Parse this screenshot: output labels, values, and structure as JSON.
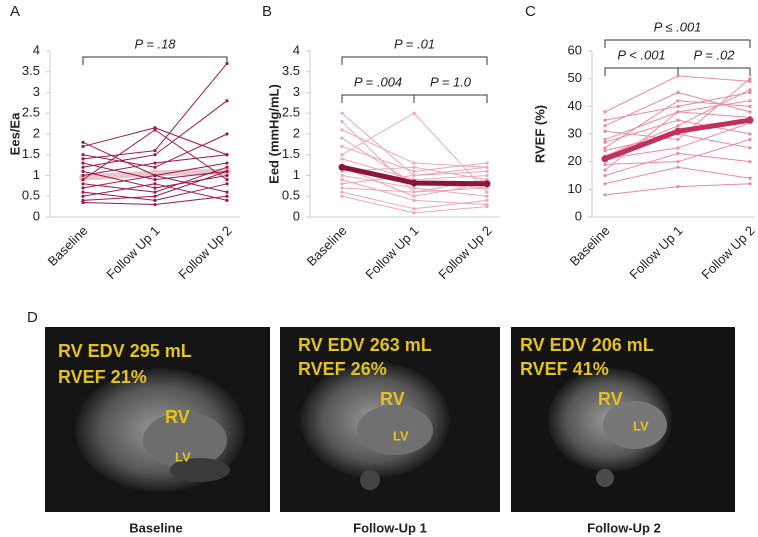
{
  "chart_data": [
    {
      "type": "line",
      "panel": "A",
      "y_label": "Ees/Ea",
      "categories": [
        "Baseline",
        "Follow Up 1",
        "Follow Up 2"
      ],
      "ylim": [
        0,
        4
      ],
      "yticks": [
        0,
        0.5,
        1,
        1.5,
        2,
        2.5,
        3,
        3.5,
        4
      ],
      "annotations": [
        {
          "text": "P = .18",
          "from": 0,
          "to": 2
        }
      ],
      "series": [
        {
          "color": "#e8c6cc",
          "line_width": 6,
          "values": [
            0.95,
            1.05,
            1.1
          ]
        },
        {
          "color": "#9b1a4b",
          "values": [
            1.8,
            1.0,
            1.3
          ]
        },
        {
          "color": "#9b1a4b",
          "values": [
            1.7,
            2.15,
            1.5
          ]
        },
        {
          "color": "#9b1a4b",
          "values": [
            1.5,
            1.2,
            2.0
          ]
        },
        {
          "color": "#9b1a4b",
          "values": [
            1.4,
            1.6,
            3.7
          ]
        },
        {
          "color": "#9b1a4b",
          "values": [
            1.3,
            0.9,
            1.1
          ]
        },
        {
          "color": "#9b1a4b",
          "values": [
            1.2,
            1.5,
            2.8
          ]
        },
        {
          "color": "#9b1a4b",
          "values": [
            1.1,
            0.7,
            1.0
          ]
        },
        {
          "color": "#9b1a4b",
          "values": [
            1.0,
            1.3,
            1.5
          ]
        },
        {
          "color": "#9b1a4b",
          "values": [
            0.9,
            2.1,
            0.9
          ]
        },
        {
          "color": "#9b1a4b",
          "values": [
            0.8,
            0.6,
            1.2
          ]
        },
        {
          "color": "#9b1a4b",
          "values": [
            0.7,
            1.0,
            0.6
          ]
        },
        {
          "color": "#9b1a4b",
          "values": [
            0.6,
            0.4,
            0.8
          ]
        },
        {
          "color": "#9b1a4b",
          "values": [
            0.5,
            0.8,
            0.4
          ]
        },
        {
          "color": "#9b1a4b",
          "values": [
            0.4,
            0.5,
            1.1
          ]
        },
        {
          "color": "#9b1a4b",
          "values": [
            0.35,
            0.3,
            0.5
          ]
        }
      ]
    },
    {
      "type": "line",
      "panel": "B",
      "y_label": "Eed (mmHg/mL)",
      "categories": [
        "Baseline",
        "Follow Up 1",
        "Follow Up 2"
      ],
      "ylim": [
        0,
        4
      ],
      "yticks": [
        0,
        0.5,
        1,
        1.5,
        2,
        2.5,
        3,
        3.5,
        4
      ],
      "annotations": [
        {
          "text": "P = .01",
          "from": 0,
          "to": 2
        },
        {
          "text": "P = .004",
          "from": 0,
          "to": 1
        },
        {
          "text": "P = 1.0",
          "from": 1,
          "to": 2
        }
      ],
      "series": [
        {
          "color": "#eaa9b6",
          "values": [
            2.5,
            1.0,
            1.1
          ]
        },
        {
          "color": "#eaa9b6",
          "values": [
            2.3,
            0.6,
            0.9
          ]
        },
        {
          "color": "#eaa9b6",
          "values": [
            2.1,
            1.3,
            1.2
          ]
        },
        {
          "color": "#eaa9b6",
          "values": [
            1.9,
            0.8,
            0.7
          ]
        },
        {
          "color": "#eaa9b6",
          "values": [
            1.7,
            1.1,
            1.3
          ]
        },
        {
          "color": "#eaa9b6",
          "values": [
            1.5,
            2.5,
            0.6
          ]
        },
        {
          "color": "#eaa9b6",
          "values": [
            1.4,
            0.9,
            1.0
          ]
        },
        {
          "color": "#eaa9b6",
          "values": [
            1.2,
            0.5,
            0.8
          ]
        },
        {
          "color": "#eaa9b6",
          "values": [
            1.1,
            1.2,
            0.9
          ]
        },
        {
          "color": "#eaa9b6",
          "values": [
            1.0,
            0.7,
            0.5
          ]
        },
        {
          "color": "#eaa9b6",
          "values": [
            0.9,
            0.4,
            0.3
          ]
        },
        {
          "color": "#eaa9b6",
          "values": [
            0.8,
            1.0,
            1.2
          ]
        },
        {
          "color": "#eaa9b6",
          "values": [
            0.7,
            0.6,
            0.7
          ]
        },
        {
          "color": "#eaa9b6",
          "values": [
            0.6,
            0.2,
            0.4
          ]
        },
        {
          "color": "#eaa9b6",
          "values": [
            0.5,
            0.1,
            0.25
          ]
        },
        {
          "color": "#8b1538",
          "line_width": 5,
          "values": [
            1.2,
            0.82,
            0.8
          ]
        }
      ]
    },
    {
      "type": "line",
      "panel": "C",
      "y_label": "RVEF (%)",
      "categories": [
        "Baseline",
        "Follow Up 1",
        "Follow Up 2"
      ],
      "ylim": [
        0,
        60
      ],
      "yticks": [
        0,
        10,
        20,
        30,
        40,
        50,
        60
      ],
      "annotations": [
        {
          "text": "P ≤ .001",
          "from": 0,
          "to": 2
        },
        {
          "text": "P < .001",
          "from": 0,
          "to": 1
        },
        {
          "text": "P = .02",
          "from": 1,
          "to": 2
        }
      ],
      "series": [
        {
          "color": "#ea8aa2",
          "values": [
            38,
            51,
            49
          ]
        },
        {
          "color": "#ea8aa2",
          "values": [
            35,
            40,
            45
          ]
        },
        {
          "color": "#ea8aa2",
          "values": [
            33,
            45,
            38
          ]
        },
        {
          "color": "#ea8aa2",
          "values": [
            31,
            28,
            50
          ]
        },
        {
          "color": "#ea8aa2",
          "values": [
            28,
            38,
            42
          ]
        },
        {
          "color": "#ea8aa2",
          "values": [
            27,
            35,
            30
          ]
        },
        {
          "color": "#ea8aa2",
          "values": [
            25,
            42,
            40
          ]
        },
        {
          "color": "#ea8aa2",
          "values": [
            24,
            30,
            25
          ]
        },
        {
          "color": "#ea8aa2",
          "values": [
            22,
            33,
            46
          ]
        },
        {
          "color": "#ea8aa2",
          "values": [
            21,
            25,
            34
          ]
        },
        {
          "color": "#ea8aa2",
          "values": [
            19,
            20,
            28
          ]
        },
        {
          "color": "#ea8aa2",
          "values": [
            17,
            38,
            36
          ]
        },
        {
          "color": "#ea8aa2",
          "values": [
            15,
            23,
            20
          ]
        },
        {
          "color": "#ea8aa2",
          "values": [
            12,
            18,
            14
          ]
        },
        {
          "color": "#ea8aa2",
          "values": [
            8,
            11,
            12
          ]
        },
        {
          "color": "#c0305a",
          "line_width": 5,
          "values": [
            21,
            31,
            35
          ]
        }
      ]
    }
  ],
  "panel_d": {
    "label": "D",
    "images": [
      {
        "lines": [
          "RV EDV 295 mL",
          "RVEF 21%"
        ],
        "rv": "RV",
        "lv": "LV",
        "caption": "Baseline"
      },
      {
        "lines": [
          "RV EDV 263 mL",
          "RVEF 26%"
        ],
        "rv": "RV",
        "lv": "LV",
        "caption": "Follow-Up 1"
      },
      {
        "lines": [
          "RV EDV 206 mL",
          "RVEF 41%"
        ],
        "rv": "RV",
        "lv": "LV",
        "caption": "Follow-Up 2"
      }
    ]
  }
}
